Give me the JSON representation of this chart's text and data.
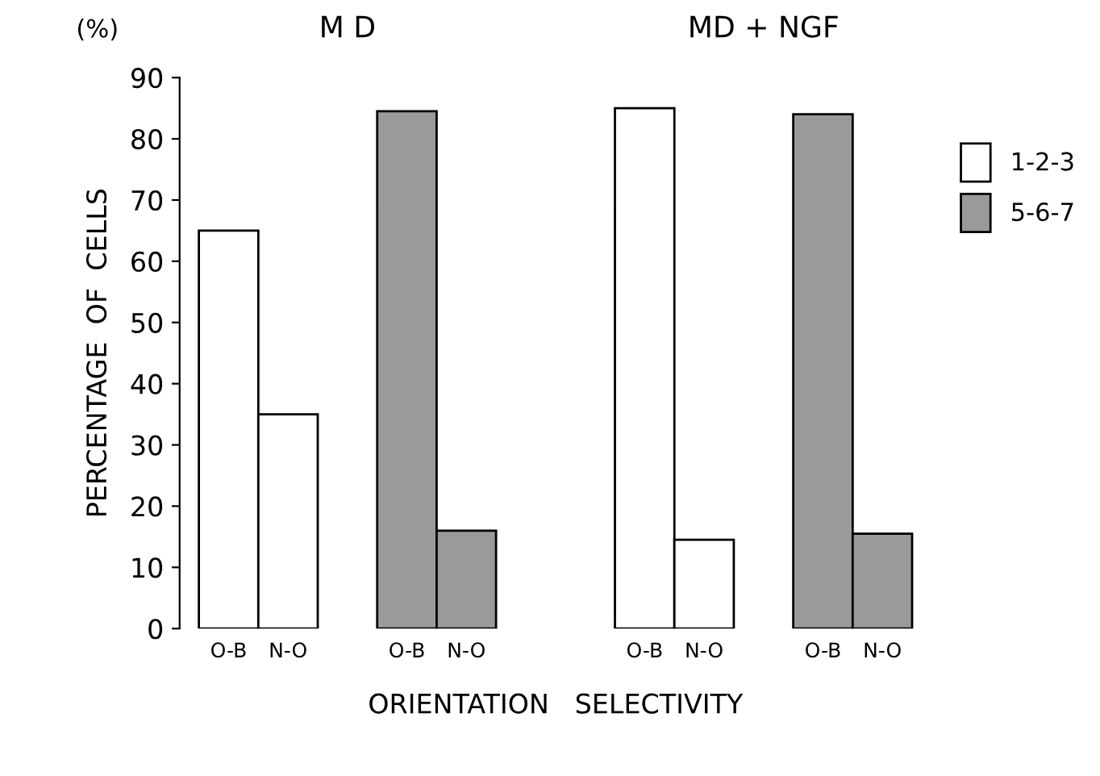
{
  "chart_data": {
    "type": "bar",
    "categories": [
      "O-B",
      "N-O",
      null,
      "O-B",
      "N-O",
      null,
      null,
      "O-B",
      "N-O",
      null,
      "O-B",
      "N-O"
    ],
    "series": [
      {
        "name": "1-2-3",
        "color": "#ffffff",
        "values": [
          65,
          35,
          null,
          null,
          null,
          null,
          null,
          85,
          14.5,
          null,
          null,
          null
        ]
      },
      {
        "name": "5-6-7",
        "color": "#9a9a9a",
        "values": [
          null,
          null,
          null,
          84.5,
          16,
          null,
          null,
          null,
          null,
          null,
          84,
          15.5
        ]
      }
    ],
    "ylabel": "PERCENTAGE  OF  CELLS",
    "xlabel": "ORIENTATION   SELECTIVITY",
    "annotations": [
      "(%)",
      "M D",
      "MD + NGF"
    ],
    "ylim": [
      0,
      90
    ],
    "yticks": [
      0,
      10,
      20,
      30,
      40,
      50,
      60,
      70,
      80,
      90
    ],
    "grid": false,
    "legend": "right"
  }
}
